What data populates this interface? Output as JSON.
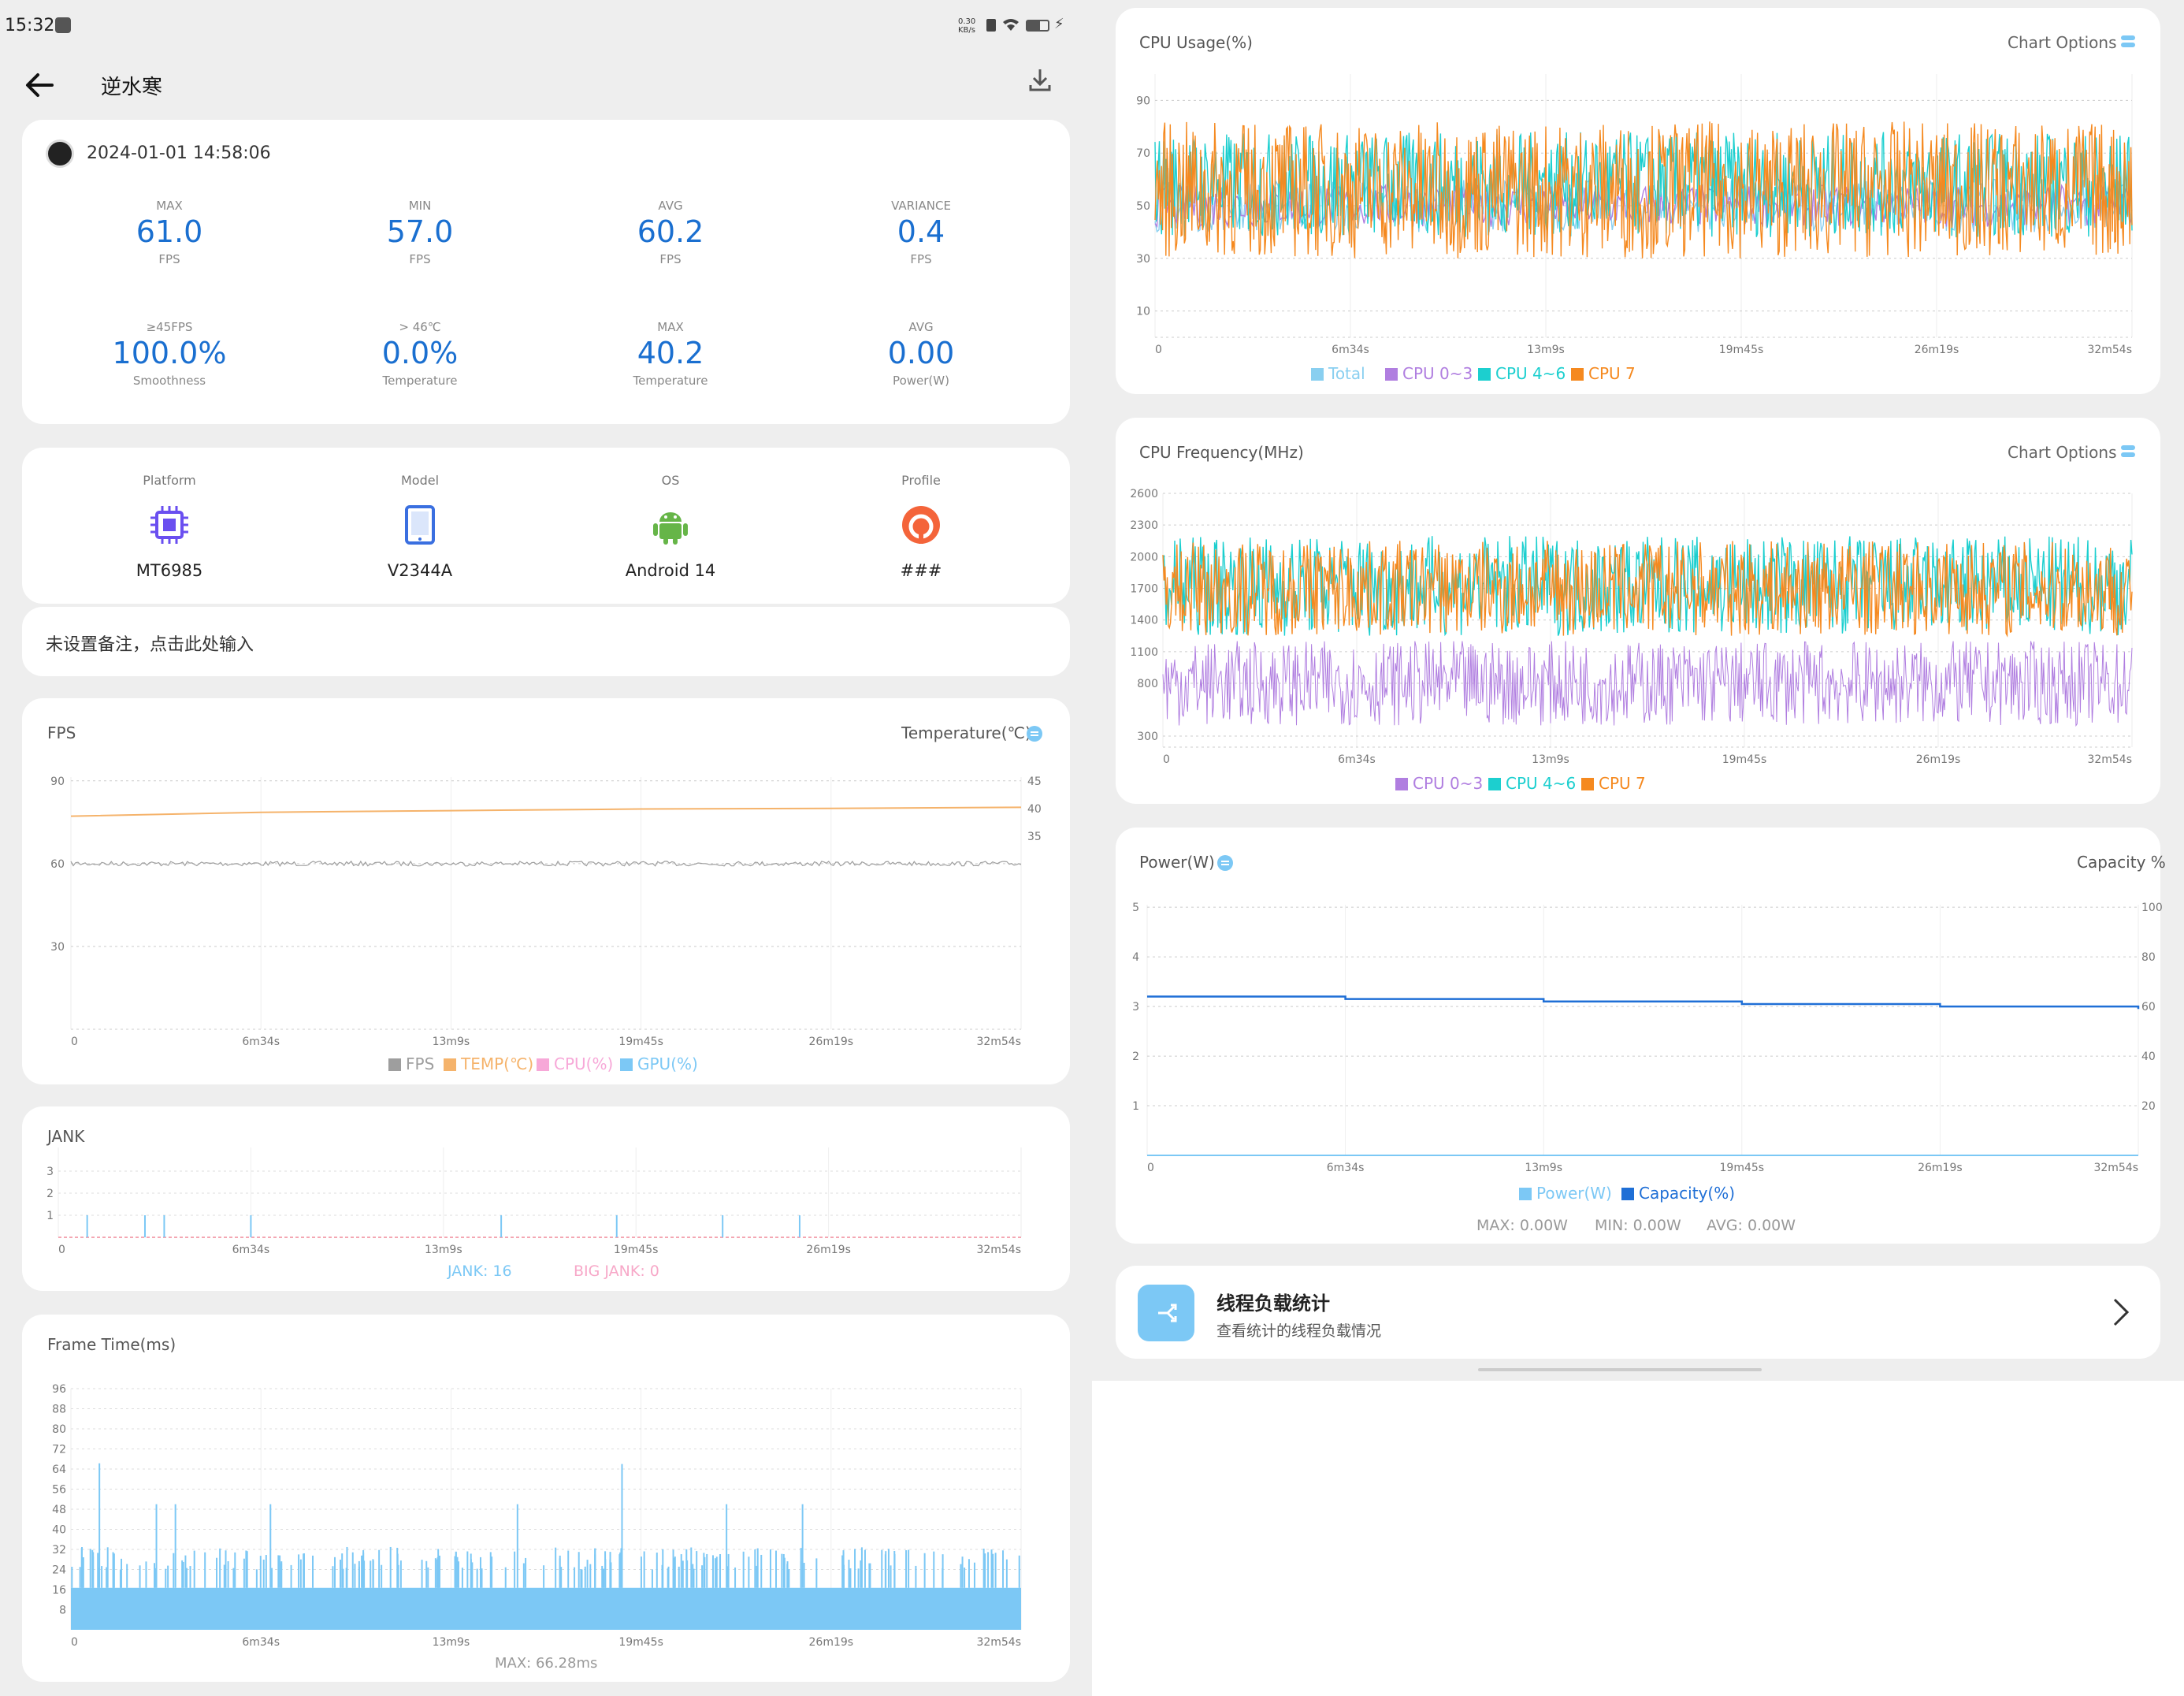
{
  "status": {
    "time": "15:32",
    "net_speed": "0.30 KB/s",
    "icons": [
      "sim-icon",
      "wifi-icon",
      "battery-icon",
      "charging-icon"
    ]
  },
  "header": {
    "title": "逆水寒",
    "back_icon": "arrow-left-icon",
    "download_icon": "download-icon"
  },
  "session": {
    "datetime": "2024-01-01 14:58:06",
    "app_icon": "game-avatar-icon",
    "stats": [
      {
        "top": "MAX",
        "value": "61.0",
        "unit": "FPS"
      },
      {
        "top": "MIN",
        "value": "57.0",
        "unit": "FPS"
      },
      {
        "top": "AVG",
        "value": "60.2",
        "unit": "FPS"
      },
      {
        "top": "VARIANCE",
        "value": "0.4",
        "unit": "FPS"
      },
      {
        "top": "≥45FPS",
        "value": "100.0%",
        "unit": "Smoothness"
      },
      {
        "top": "> 46℃",
        "value": "0.0%",
        "unit": "Temperature"
      },
      {
        "top": "MAX",
        "value": "40.2",
        "unit": "Temperature"
      },
      {
        "top": "AVG",
        "value": "0.00",
        "unit": "Power(W)"
      }
    ]
  },
  "device": {
    "items": [
      {
        "label": "Platform",
        "value": "MT6985",
        "icon": "chip-icon"
      },
      {
        "label": "Model",
        "value": "V2344A",
        "icon": "tablet-icon"
      },
      {
        "label": "OS",
        "value": "Android 14",
        "icon": "android-icon"
      },
      {
        "label": "Profile",
        "value": "###",
        "icon": "profile-icon"
      }
    ]
  },
  "note": {
    "placeholder": "未设置备注，点击此处输入"
  },
  "colors": {
    "accent": "#1a6fd0",
    "fps": "#9e9e9e",
    "temp": "#f5b36b",
    "cpu": "#f7a8d8",
    "gpu": "#7cc8f5",
    "cpu_total": "#89cff0",
    "cpu03": "#b07ee0",
    "cpu46": "#1ccfcf",
    "cpu7": "#f5891f",
    "capacity": "#1f6fd6",
    "jank": "#7cc8f5",
    "bigjank": "#f7a8c8"
  },
  "time_ticks": [
    "0",
    "6m34s",
    "13m9s",
    "19m45s",
    "26m19s",
    "32m54s"
  ],
  "fps_chart": {
    "title": "FPS",
    "right_title": "Temperature(℃)",
    "y_left": [
      "90",
      "60",
      "30"
    ],
    "y_right": [
      "45",
      "40",
      "35"
    ],
    "legend": [
      "FPS",
      "TEMP(℃)",
      "CPU(%)",
      "GPU(%)"
    ]
  },
  "jank_chart": {
    "title": "JANK",
    "y": [
      "3",
      "2",
      "1"
    ],
    "jank_label": "JANK: 16",
    "bigjank_label": "BIG JANK: 0"
  },
  "frametime_chart": {
    "title": "Frame Time(ms)",
    "y": [
      "96",
      "88",
      "80",
      "72",
      "64",
      "56",
      "48",
      "40",
      "32",
      "24",
      "16",
      "8"
    ],
    "max_label": "MAX: 66.28ms"
  },
  "cpu_usage_chart": {
    "title": "CPU Usage(%)",
    "options_label": "Chart Options",
    "y": [
      "90",
      "70",
      "50",
      "30",
      "10"
    ],
    "legend": [
      "Total",
      "CPU 0~3",
      "CPU 4~6",
      "CPU 7"
    ]
  },
  "cpu_freq_chart": {
    "title": "CPU Frequency(MHz)",
    "options_label": "Chart Options",
    "y": [
      "2600",
      "2300",
      "2000",
      "1700",
      "1400",
      "1100",
      "800",
      "300"
    ],
    "legend": [
      "CPU 0~3",
      "CPU 4~6",
      "CPU 7"
    ]
  },
  "power_chart": {
    "title": "Power(W)",
    "right_title": "Capacity %",
    "y_left": [
      "5",
      "4",
      "3",
      "2",
      "1"
    ],
    "y_right": [
      "100",
      "80",
      "60",
      "40",
      "20"
    ],
    "legend": [
      "Power(W)",
      "Capacity(%)"
    ],
    "summary": {
      "max": "MAX: 0.00W",
      "min": "MIN: 0.00W",
      "avg": "AVG: 0.00W"
    }
  },
  "thread_card": {
    "title": "线程负载统计",
    "subtitle": "查看统计的线程负载情况",
    "icon": "share-icon",
    "chevron": "chevron-right-icon"
  },
  "chart_data": [
    {
      "type": "line",
      "title": "FPS",
      "x": [
        "0",
        "6m34s",
        "13m9s",
        "19m45s",
        "26m19s",
        "32m54s"
      ],
      "series": [
        {
          "name": "FPS",
          "values": [
            60,
            60,
            60,
            60,
            60,
            60
          ]
        },
        {
          "name": "TEMP(℃)",
          "values": [
            38.6,
            39.3,
            39.6,
            39.9,
            40.0,
            40.2
          ]
        }
      ],
      "ylim": [
        0,
        90
      ],
      "y2lim": [
        30,
        45
      ]
    },
    {
      "type": "bar",
      "title": "JANK",
      "ylim": [
        0,
        3
      ],
      "series": [
        {
          "name": "JANK",
          "count": 16
        },
        {
          "name": "BIG JANK",
          "count": 0
        }
      ]
    },
    {
      "type": "bar",
      "title": "Frame Time(ms)",
      "ylim": [
        0,
        96
      ],
      "max": 66.28
    },
    {
      "type": "line",
      "title": "CPU Usage(%)",
      "ylim": [
        0,
        100
      ],
      "series": [
        {
          "name": "Total"
        },
        {
          "name": "CPU 0~3"
        },
        {
          "name": "CPU 4~6"
        },
        {
          "name": "CPU 7"
        }
      ]
    },
    {
      "type": "line",
      "title": "CPU Frequency(MHz)",
      "ylim": [
        300,
        2600
      ],
      "series": [
        {
          "name": "CPU 0~3"
        },
        {
          "name": "CPU 4~6"
        },
        {
          "name": "CPU 7"
        }
      ]
    },
    {
      "type": "line",
      "title": "Power(W)",
      "x": [
        "0",
        "6m34s",
        "13m9s",
        "19m45s",
        "26m19s",
        "32m54s"
      ],
      "series": [
        {
          "name": "Power(W)",
          "values": [
            0,
            0,
            0,
            0,
            0,
            0
          ]
        },
        {
          "name": "Capacity(%)",
          "values": [
            64,
            63,
            62,
            61,
            60,
            59
          ]
        }
      ],
      "ylim": [
        0,
        5
      ],
      "y2lim": [
        0,
        100
      ]
    }
  ]
}
